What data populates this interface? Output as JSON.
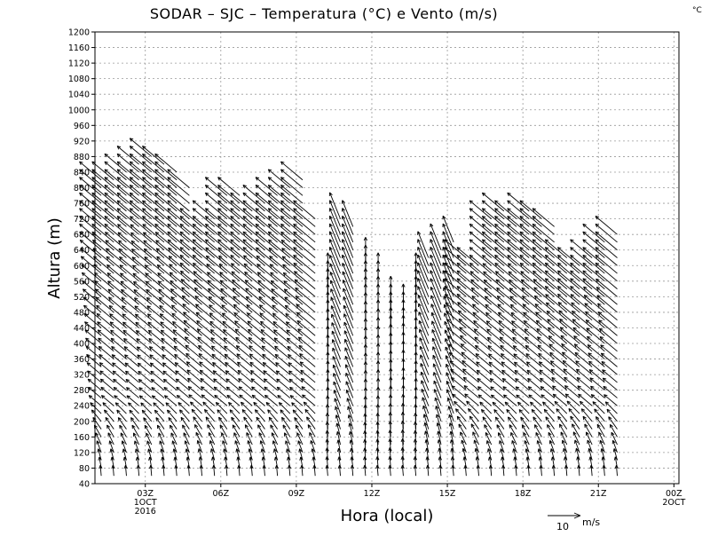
{
  "chart_data": {
    "type": "vector-field",
    "title": "SODAR – SJC – Temperatura (°C) e Vento (m/s)",
    "corner_unit": "°C",
    "ylabel": "Altura (m)",
    "xlabel": "Hora (local)",
    "ylim": [
      40,
      1200
    ],
    "yticks": [
      40,
      80,
      120,
      160,
      200,
      240,
      280,
      320,
      360,
      400,
      440,
      480,
      520,
      560,
      600,
      640,
      680,
      720,
      760,
      800,
      840,
      880,
      920,
      960,
      1000,
      1040,
      1080,
      1120,
      1160,
      1200
    ],
    "xlim_hours": [
      0,
      23.2
    ],
    "xticks": [
      {
        "hour": 2,
        "lines": [
          "03Z",
          "1OCT",
          "2016"
        ]
      },
      {
        "hour": 5,
        "lines": [
          "06Z"
        ]
      },
      {
        "hour": 8,
        "lines": [
          "09Z"
        ]
      },
      {
        "hour": 11,
        "lines": [
          "12Z"
        ]
      },
      {
        "hour": 14,
        "lines": [
          "15Z"
        ]
      },
      {
        "hour": 17,
        "lines": [
          "18Z"
        ]
      },
      {
        "hour": 20,
        "lines": [
          "21Z"
        ]
      },
      {
        "hour": 23,
        "lines": [
          "00Z",
          "2OCT"
        ]
      }
    ],
    "reference_vector": {
      "speed_ms": 10,
      "label_value": "10",
      "label_unit": "m/s"
    },
    "profile_time_step_hours": 0.5,
    "height_step_m": 20,
    "profiles": [
      {
        "top": 820,
        "dir": "NW"
      },
      {
        "top": 820,
        "dir": "NW"
      },
      {
        "top": 840,
        "dir": "NW"
      },
      {
        "top": 860,
        "dir": "NW"
      },
      {
        "top": 880,
        "dir": "NW"
      },
      {
        "top": 860,
        "dir": "NW"
      },
      {
        "top": 840,
        "dir": "NW"
      },
      {
        "top": 800,
        "dir": "NW"
      },
      {
        "top": 700,
        "dir": "NW"
      },
      {
        "top": 720,
        "dir": "NW"
      },
      {
        "top": 780,
        "dir": "NW"
      },
      {
        "top": 780,
        "dir": "NW"
      },
      {
        "top": 740,
        "dir": "NW"
      },
      {
        "top": 760,
        "dir": "NW"
      },
      {
        "top": 780,
        "dir": "NW"
      },
      {
        "top": 800,
        "dir": "NW"
      },
      {
        "top": 820,
        "dir": "NW"
      },
      {
        "top": 720,
        "dir": "NW"
      },
      {
        "top": 560,
        "dir": "N"
      },
      {
        "top": 720,
        "dir": "NNW"
      },
      {
        "top": 700,
        "dir": "NNW"
      },
      {
        "top": 600,
        "dir": "N"
      },
      {
        "top": 560,
        "dir": "N"
      },
      {
        "top": 500,
        "dir": "N"
      },
      {
        "top": 480,
        "dir": "N"
      },
      {
        "top": 560,
        "dir": "N"
      },
      {
        "top": 620,
        "dir": "NNW"
      },
      {
        "top": 640,
        "dir": "NNW"
      },
      {
        "top": 660,
        "dir": "NNW"
      },
      {
        "top": 620,
        "dir": "NW"
      },
      {
        "top": 600,
        "dir": "NW"
      },
      {
        "top": 720,
        "dir": "NW"
      },
      {
        "top": 740,
        "dir": "NW"
      },
      {
        "top": 720,
        "dir": "NW"
      },
      {
        "top": 740,
        "dir": "NW"
      },
      {
        "top": 720,
        "dir": "NW"
      },
      {
        "top": 700,
        "dir": "NW"
      },
      {
        "top": 620,
        "dir": "NW"
      },
      {
        "top": 600,
        "dir": "NW"
      },
      {
        "top": 620,
        "dir": "NW"
      },
      {
        "top": 660,
        "dir": "NW"
      },
      {
        "top": 680,
        "dir": "NW"
      }
    ]
  }
}
